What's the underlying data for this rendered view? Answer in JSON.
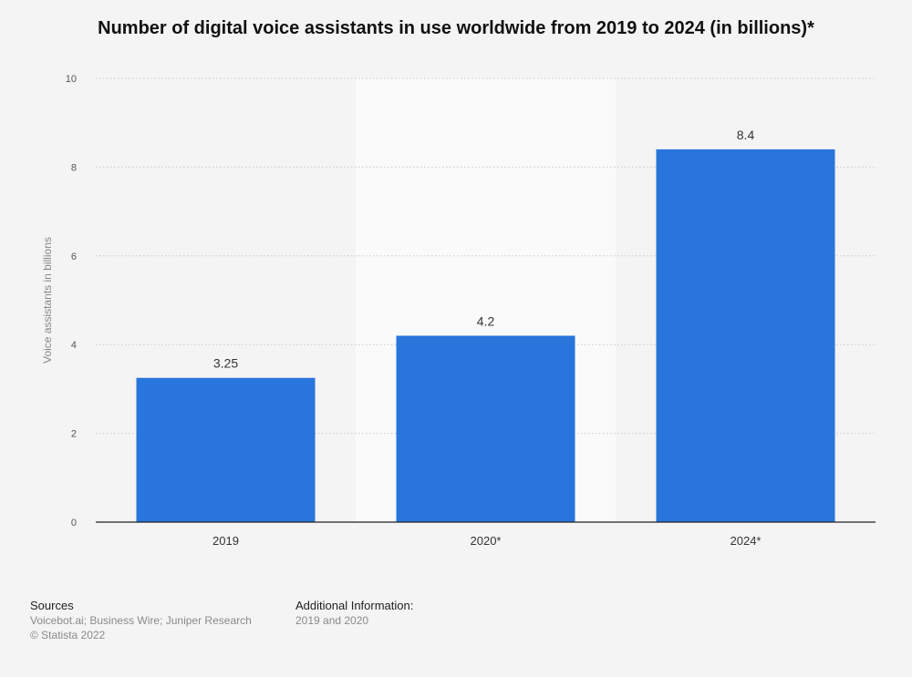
{
  "chart_data": {
    "type": "bar",
    "title": "Number of digital voice assistants in use worldwide from 2019 to 2024 (in billions)*",
    "xlabel": "",
    "ylabel": "Voice assistants in billions",
    "categories": [
      "2019",
      "2020*",
      "2024*"
    ],
    "values": [
      3.25,
      4.2,
      8.4
    ],
    "data_labels": [
      "3.25",
      "4.2",
      "8.4"
    ],
    "ylim": [
      0,
      10
    ],
    "yticks": [
      0,
      2,
      4,
      6,
      8,
      10
    ],
    "highlighted_category": "2020*",
    "grid": true,
    "legend": "none",
    "bar_color": "#2875dc",
    "highlight_band_color": "#fafafa"
  },
  "footer": {
    "sources_label": "Sources",
    "sources_text": "Voicebot.ai; Business Wire; Juniper Research",
    "copyright": "© Statista 2022",
    "additional_label": "Additional Information:",
    "additional_text": "2019 and 2020"
  }
}
